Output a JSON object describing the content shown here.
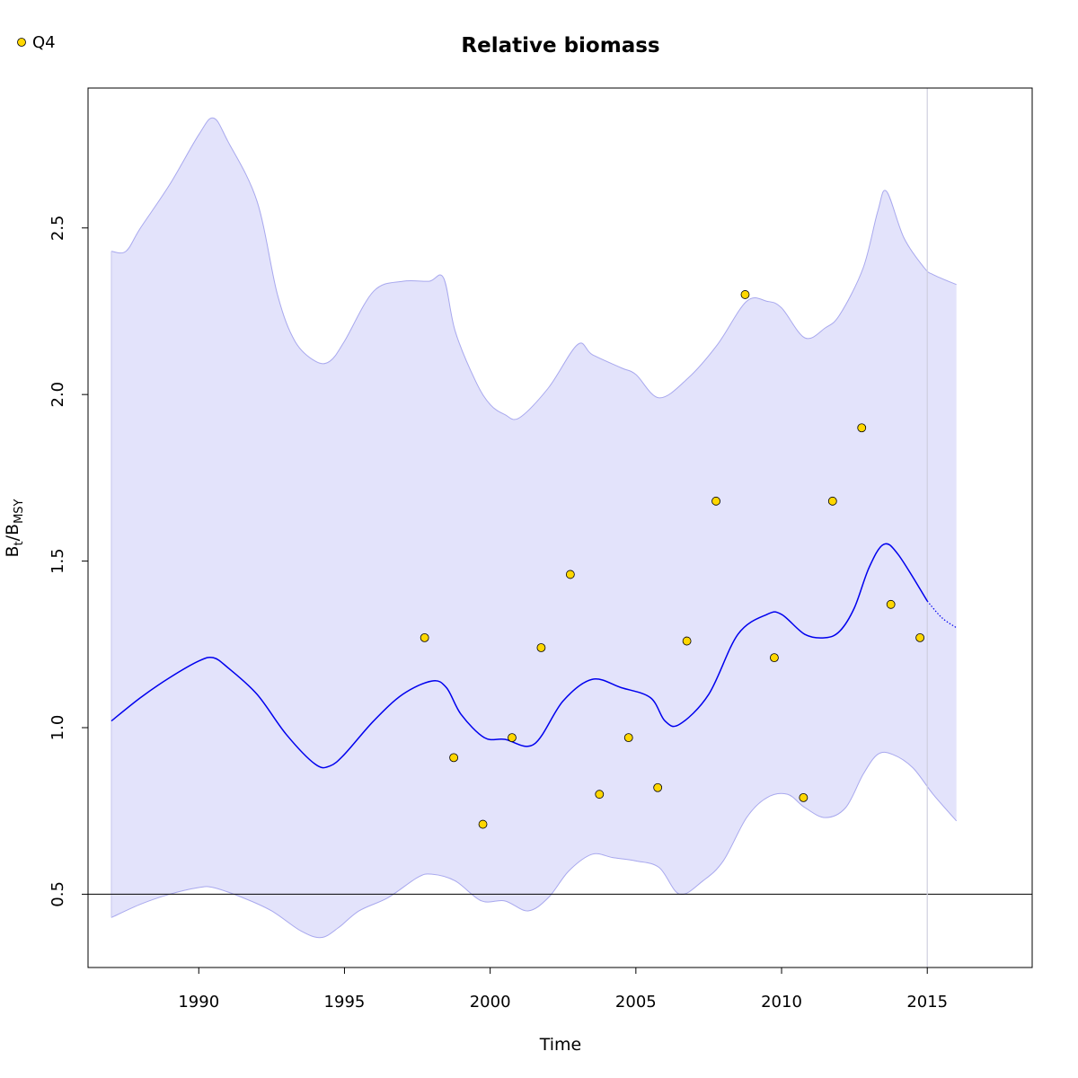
{
  "chart_data": {
    "type": "line",
    "title": "Relative biomass",
    "xlabel": "Time",
    "ylabel": {
      "main": "B",
      "sub1": "t",
      "sep": "/B",
      "sub2": "MSY"
    },
    "xlim": [
      1986.2,
      2018.6
    ],
    "ylim": [
      0.28,
      2.92
    ],
    "x_ticks": [
      1990,
      1995,
      2000,
      2005,
      2010,
      2015
    ],
    "y_ticks": [
      0.5,
      1.0,
      1.5,
      2.0,
      2.5
    ],
    "y_tick_labels": [
      "0.5",
      "1.0",
      "1.5",
      "2.0",
      "2.5"
    ],
    "reference_hline": 0.5,
    "reference_vline": 2015,
    "colors": {
      "band_fill": "#e3e3fb",
      "band_edge": "#a8a8ee",
      "estimate_line": "#0000ee",
      "points_fill": "#ffd700",
      "refline": "#000000",
      "vline": "#cfcfdf"
    },
    "legend": {
      "placement": "top-left",
      "entries": [
        {
          "label": "Q4",
          "marker": "circle"
        }
      ]
    },
    "series": [
      {
        "role": "estimate",
        "style": "solid",
        "x": [
          1987,
          1988,
          1989,
          1990,
          1990.5,
          1991,
          1992,
          1993,
          1994,
          1994.5,
          1995,
          1996,
          1997,
          1998,
          1998.5,
          1999,
          1999.8,
          2000.5,
          2001.5,
          2002.5,
          2003.5,
          2004.5,
          2005.5,
          2006,
          2006.5,
          2007.5,
          2008.5,
          2009.5,
          2010,
          2010.8,
          2011.5,
          2012,
          2012.5,
          2013,
          2013.5,
          2014,
          2015
        ],
        "y": [
          1.02,
          1.09,
          1.15,
          1.2,
          1.21,
          1.18,
          1.1,
          0.98,
          0.89,
          0.885,
          0.92,
          1.02,
          1.1,
          1.14,
          1.12,
          1.04,
          0.97,
          0.965,
          0.95,
          1.08,
          1.145,
          1.12,
          1.09,
          1.02,
          1.01,
          1.1,
          1.28,
          1.34,
          1.34,
          1.28,
          1.27,
          1.29,
          1.36,
          1.48,
          1.55,
          1.52,
          1.38
        ]
      },
      {
        "role": "prediction",
        "style": "dotted",
        "x": [
          2015,
          2015.5,
          2016
        ],
        "y": [
          1.38,
          1.33,
          1.3
        ]
      },
      {
        "role": "ci_upper",
        "x": [
          1987,
          1987.5,
          1988,
          1989,
          1990,
          1990.5,
          1991,
          1992,
          1992.7,
          1993.3,
          1994,
          1994.5,
          1995,
          1996,
          1997,
          1997.9,
          1998.4,
          1998.8,
          1999.5,
          2000,
          2000.5,
          2001,
          2002,
          2003,
          2003.5,
          2004.5,
          2005,
          2005.8,
          2006.8,
          2007.8,
          2008.8,
          2009.5,
          2010,
          2010.8,
          2011.5,
          2012,
          2012.8,
          2013.3,
          2013.6,
          2014.2,
          2014.9,
          2015.2,
          2016
        ],
        "y": [
          2.43,
          2.43,
          2.5,
          2.63,
          2.78,
          2.83,
          2.76,
          2.58,
          2.3,
          2.16,
          2.1,
          2.1,
          2.16,
          2.31,
          2.34,
          2.34,
          2.35,
          2.19,
          2.04,
          1.97,
          1.94,
          1.93,
          2.02,
          2.15,
          2.12,
          2.08,
          2.06,
          1.99,
          2.05,
          2.15,
          2.28,
          2.28,
          2.26,
          2.17,
          2.2,
          2.24,
          2.38,
          2.55,
          2.61,
          2.47,
          2.38,
          2.36,
          2.33
        ]
      },
      {
        "role": "ci_lower",
        "x": [
          1987,
          1988,
          1989,
          1990,
          1990.5,
          1991.5,
          1992.5,
          1993.5,
          1994.2,
          1994.8,
          1995.5,
          1996.5,
          1997.5,
          1998,
          1998.8,
          1999.7,
          2000.5,
          2001.3,
          2002,
          2002.7,
          2003.5,
          2004.2,
          2005,
          2005.8,
          2006.5,
          2007.3,
          2008,
          2008.8,
          2009.5,
          2010.2,
          2010.8,
          2011.5,
          2012.2,
          2012.8,
          2013.3,
          2013.8,
          2014.5,
          2015.2,
          2016
        ],
        "y": [
          0.43,
          0.47,
          0.5,
          0.52,
          0.52,
          0.49,
          0.45,
          0.39,
          0.37,
          0.4,
          0.45,
          0.49,
          0.55,
          0.56,
          0.54,
          0.48,
          0.48,
          0.45,
          0.49,
          0.57,
          0.62,
          0.61,
          0.6,
          0.58,
          0.5,
          0.54,
          0.6,
          0.73,
          0.79,
          0.8,
          0.76,
          0.73,
          0.76,
          0.86,
          0.92,
          0.92,
          0.88,
          0.8,
          0.72
        ]
      }
    ],
    "points": {
      "name": "Q4",
      "x": [
        1997.75,
        1998.75,
        1999.75,
        2000.75,
        2001.75,
        2002.75,
        2003.75,
        2004.75,
        2005.75,
        2006.75,
        2007.75,
        2008.75,
        2009.75,
        2010.75,
        2011.75,
        2012.75,
        2013.75,
        2014.75
      ],
      "y": [
        1.27,
        0.91,
        0.71,
        0.97,
        1.24,
        1.46,
        0.8,
        0.97,
        0.82,
        1.26,
        1.68,
        2.3,
        1.21,
        0.79,
        1.68,
        1.9,
        1.37,
        1.27
      ]
    }
  }
}
